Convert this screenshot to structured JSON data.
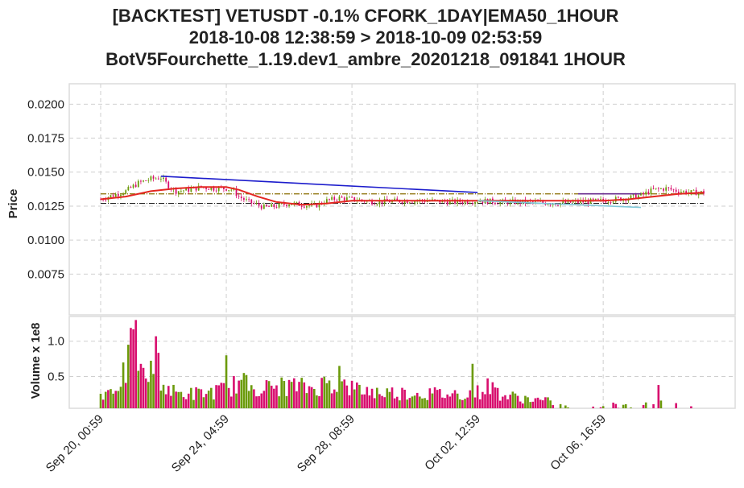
{
  "title_lines": [
    "[BACKTEST] VETUSDT -0.1% CFORK_1DAY|EMA50_1HOUR",
    "2018-10-08 12:38:59 > 2018-10-09 02:53:59",
    "BotV5Fourchette_1.19.dev1_ambre_20201218_091841 1HOUR"
  ],
  "chart_data": [
    {
      "type": "candlestick",
      "ylabel": "Price",
      "ylim": [
        0.0045,
        0.0215
      ],
      "yticks": [
        "0.0200",
        "0.0175",
        "0.0150",
        "0.0125",
        "0.0100",
        "0.0075"
      ],
      "ytick_values": [
        0.02,
        0.0175,
        0.015,
        0.0125,
        0.01,
        0.0075
      ],
      "xticks": [
        "Sep 20, 00:59",
        "Sep 24, 04:59",
        "Sep 28, 08:59",
        "Oct 02, 12:59",
        "Oct 06, 16:59"
      ],
      "xtick_hours": [
        0,
        100,
        200,
        300,
        400
      ],
      "xlim_hours": [
        -25,
        505
      ],
      "grid": true,
      "price_path": {
        "hours": [
          0,
          10,
          20,
          30,
          40,
          48,
          55,
          60,
          70,
          80,
          90,
          100,
          105,
          110,
          118,
          125,
          130,
          140,
          150,
          160,
          170,
          180,
          190,
          200,
          210,
          220,
          240,
          260,
          280,
          300,
          320,
          340,
          360,
          380,
          400,
          420,
          430,
          440,
          450,
          460,
          470,
          480
        ],
        "close": [
          0.013,
          0.0133,
          0.0136,
          0.0142,
          0.0145,
          0.0146,
          0.0139,
          0.0136,
          0.0137,
          0.0139,
          0.0138,
          0.0138,
          0.0137,
          0.0132,
          0.0128,
          0.0126,
          0.0124,
          0.0125,
          0.0127,
          0.0126,
          0.0125,
          0.0129,
          0.0131,
          0.013,
          0.0129,
          0.0128,
          0.0129,
          0.0129,
          0.0128,
          0.0129,
          0.0128,
          0.0128,
          0.0127,
          0.0128,
          0.0129,
          0.0131,
          0.0133,
          0.0137,
          0.0138,
          0.0136,
          0.0135,
          0.0135
        ]
      },
      "lines": [
        {
          "name": "ema50",
          "color": "#e32620",
          "hours": [
            0,
            20,
            40,
            60,
            80,
            100,
            110,
            125,
            140,
            160,
            180,
            200,
            240,
            280,
            320,
            360,
            400,
            420,
            440,
            460,
            480
          ],
          "values": [
            0.013,
            0.0132,
            0.0136,
            0.0138,
            0.0139,
            0.0139,
            0.0137,
            0.0132,
            0.0128,
            0.0126,
            0.0127,
            0.0129,
            0.0129,
            0.0129,
            0.0129,
            0.0129,
            0.0129,
            0.013,
            0.0132,
            0.0134,
            0.0135
          ]
        },
        {
          "name": "fork-upper",
          "color": "#1c1ccc",
          "hours": [
            48,
            300
          ],
          "values": [
            0.0147,
            0.0135
          ]
        },
        {
          "name": "fork-upper-right",
          "color": "#6a2f8f",
          "hours": [
            380,
            430
          ],
          "values": [
            0.0134,
            0.0134
          ]
        },
        {
          "name": "fork-lower-right",
          "color": "#7fc8d8",
          "hours": [
            300,
            430
          ],
          "values": [
            0.0129,
            0.0124
          ]
        }
      ],
      "hlines": [
        {
          "value": 0.0134,
          "color": "#8a6d00",
          "style": "dashdot"
        },
        {
          "value": 0.0127,
          "color": "#222222",
          "style": "dashdot"
        }
      ]
    },
    {
      "type": "bar",
      "ylabel": "Volume x 1e8",
      "ylim": [
        0.05,
        1.35
      ],
      "yticks": [
        "1.0",
        "0.5"
      ],
      "ytick_values": [
        1.0,
        0.5
      ],
      "xlim_hours": [
        -25,
        505
      ],
      "grid": true,
      "up_color": "#6b9a0a",
      "down_color": "#d80e6e",
      "volume_profile": {
        "hours": [
          0,
          10,
          20,
          25,
          30,
          40,
          45,
          50,
          60,
          80,
          100,
          110,
          130,
          150,
          170,
          180,
          190,
          200,
          220,
          260,
          280,
          300,
          310,
          320,
          360,
          370,
          380,
          390,
          400,
          420,
          440,
          460,
          480
        ],
        "volume": [
          0.28,
          0.35,
          0.6,
          1.0,
          0.55,
          0.6,
          0.75,
          0.4,
          0.28,
          0.28,
          0.34,
          0.45,
          0.36,
          0.4,
          0.36,
          0.45,
          0.42,
          0.36,
          0.3,
          0.28,
          0.27,
          0.3,
          0.4,
          0.25,
          0.15,
          0.08,
          0.1,
          0.06,
          0.12,
          0.08,
          0.18,
          0.1,
          0.05
        ]
      },
      "spikes": [
        {
          "hour": 28,
          "volume": 1.3
        },
        {
          "hour": 44,
          "volume": 1.07
        },
        {
          "hour": 22,
          "volume": 0.95
        },
        {
          "hour": 100,
          "volume": 0.8
        },
        {
          "hour": 190,
          "volume": 0.65
        },
        {
          "hour": 296,
          "volume": 0.68
        },
        {
          "hour": 444,
          "volume": 0.38
        }
      ]
    }
  ]
}
